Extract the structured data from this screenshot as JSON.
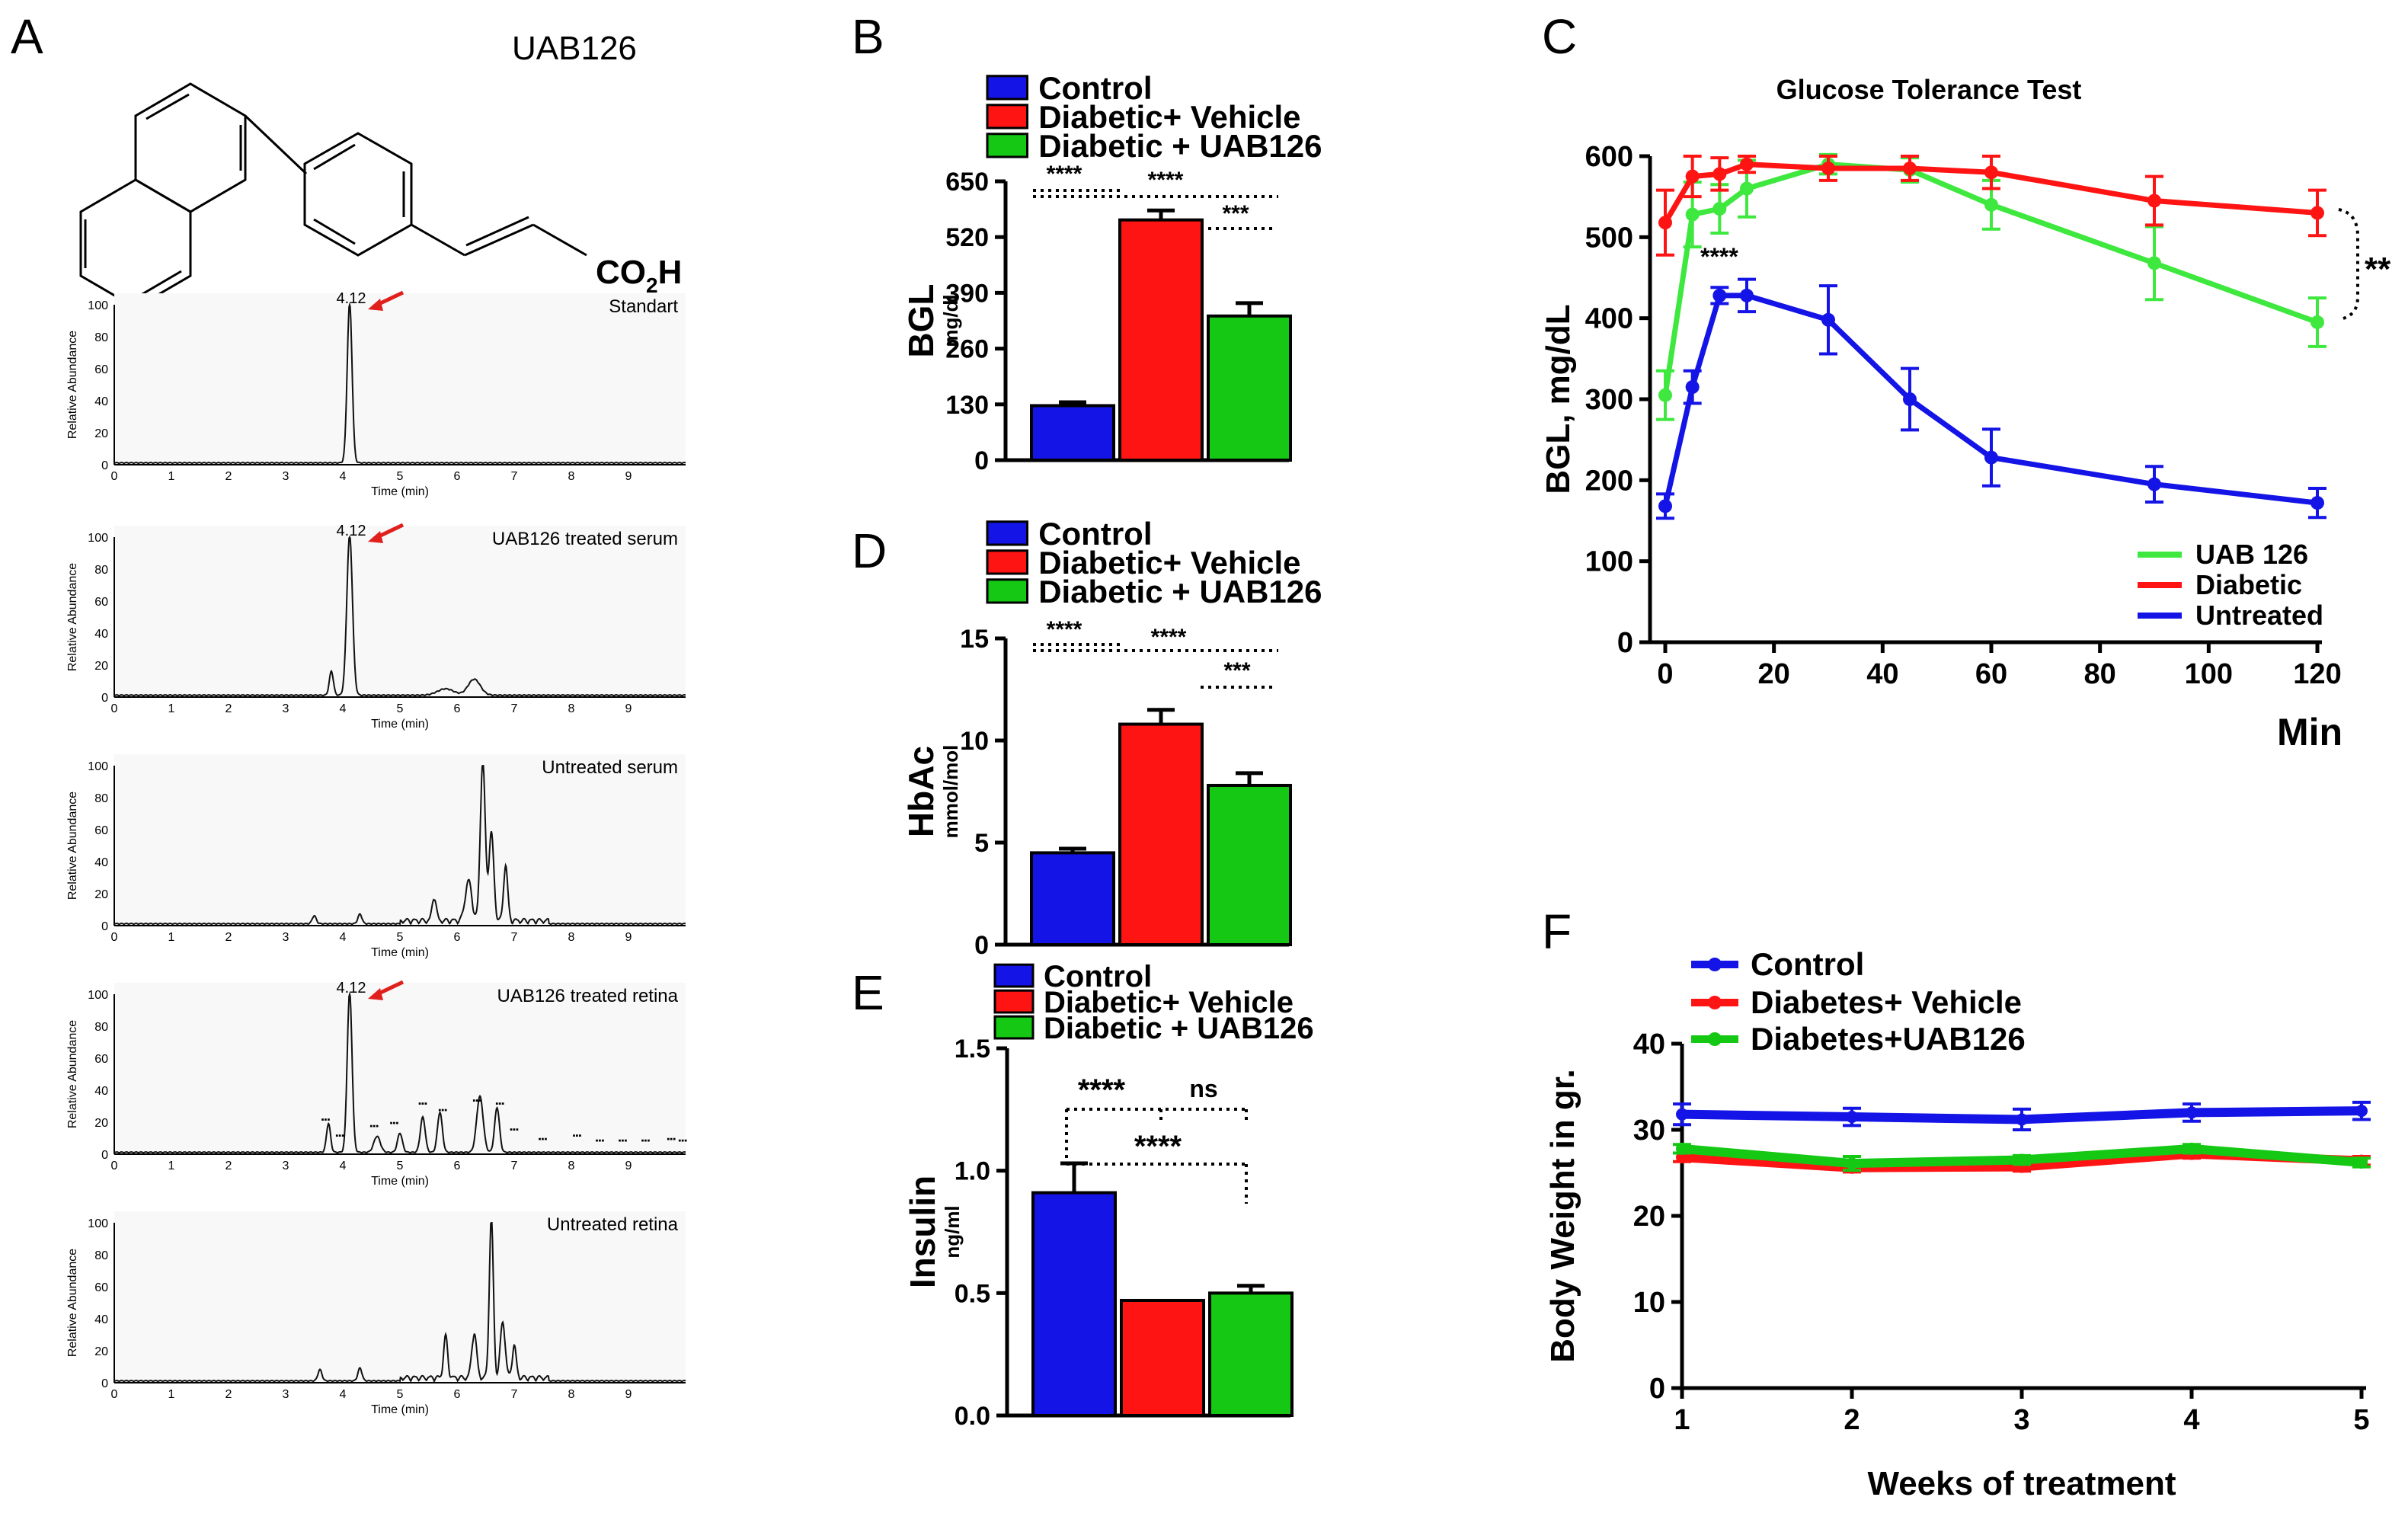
{
  "panel_labels": {
    "a": "A",
    "b": "B",
    "c": "C",
    "d": "D",
    "e": "E",
    "f": "F"
  },
  "panel_a": {
    "compound": "UAB126",
    "formula_main": "CO",
    "formula_sub": "2",
    "formula_tail": "H",
    "chromatograms": [
      {
        "label": "Standart",
        "peak_label": "4.12"
      },
      {
        "label": "UAB126 treated serum",
        "peak_label": "4.12"
      },
      {
        "label": "Untreated serum",
        "peak_label": ""
      },
      {
        "label": "UAB126 treated retina",
        "peak_label": "4.12"
      },
      {
        "label": "Untreated retina",
        "peak_label": ""
      }
    ],
    "y_label": "Relative Abundance",
    "x_label": "Time (min)",
    "x_ticks": [
      "0",
      "1",
      "2",
      "3",
      "4",
      "5",
      "6",
      "7",
      "8",
      "9"
    ],
    "y_ticks": [
      "0",
      "20",
      "40",
      "60",
      "80",
      "100"
    ],
    "colors": {
      "arrow": "#e0201c",
      "annotation": "#2f9e2f"
    }
  },
  "legend_bars": {
    "control": "Control",
    "vehicle": "Diabetic+ Vehicle",
    "uab": "Diabetic + UAB126"
  },
  "colors": {
    "blue": "#1414e6",
    "red": "#ff1414",
    "green": "#14c814",
    "lightgreen": "#3ee83e",
    "sig_blue": "#3a3ae8"
  },
  "chart_data": [
    {
      "id": "B",
      "type": "bar",
      "title": "",
      "ylabel": "BGL",
      "ylabel_unit": "mg/dl",
      "categories": [
        "Control",
        "Diabetic+ Vehicle",
        "Diabetic + UAB126"
      ],
      "values": [
        127,
        560,
        336
      ],
      "errors": [
        8,
        22,
        30
      ],
      "ylim": [
        0,
        650
      ],
      "yticks": [
        "0",
        "130",
        "260",
        "390",
        "520",
        "650"
      ],
      "sig": [
        "****",
        "****",
        "***"
      ]
    },
    {
      "id": "C",
      "type": "line",
      "title": "Glucose Tolerance Test",
      "xlabel": "Min",
      "ylabel": "BGL, mg/dL",
      "x": [
        0,
        5,
        10,
        15,
        30,
        45,
        60,
        90,
        120
      ],
      "xlim": [
        0,
        120
      ],
      "ylim": [
        0,
        600
      ],
      "xticks": [
        "0",
        "20",
        "40",
        "60",
        "80",
        "100",
        "120"
      ],
      "yticks": [
        "0",
        "100",
        "200",
        "300",
        "400",
        "500",
        "600"
      ],
      "series": [
        {
          "name": "UAB 126",
          "values": [
            305,
            528,
            535,
            560,
            590,
            583,
            540,
            468,
            395
          ],
          "errors": [
            30,
            40,
            30,
            35,
            12,
            15,
            30,
            45,
            30
          ]
        },
        {
          "name": "Diabetic",
          "values": [
            518,
            575,
            578,
            590,
            585,
            585,
            580,
            545,
            530
          ],
          "errors": [
            40,
            25,
            20,
            10,
            15,
            15,
            20,
            30,
            28
          ]
        },
        {
          "name": "Untreated",
          "values": [
            168,
            315,
            428,
            428,
            398,
            300,
            228,
            195,
            172
          ],
          "errors": [
            15,
            20,
            10,
            20,
            42,
            38,
            35,
            22,
            18
          ]
        }
      ],
      "sig_inline": "****",
      "sig_bracket": "**"
    },
    {
      "id": "D",
      "type": "bar",
      "title": "",
      "ylabel": "HbAc",
      "ylabel_unit": "mmol/mol",
      "categories": [
        "Control",
        "Diabetic+ Vehicle",
        "Diabetic + UAB126"
      ],
      "values": [
        4.5,
        10.8,
        7.8
      ],
      "errors": [
        0.2,
        0.7,
        0.6
      ],
      "ylim": [
        0,
        15
      ],
      "yticks": [
        "0",
        "5",
        "10",
        "15"
      ],
      "sig": [
        "****",
        "****",
        "***"
      ]
    },
    {
      "id": "E",
      "type": "bar",
      "title": "",
      "ylabel": "Insulin",
      "ylabel_unit": "ng/ml",
      "categories": [
        "Control",
        "Diabetic+ Vehicle",
        "Diabetic + UAB126"
      ],
      "values": [
        0.91,
        0.47,
        0.5
      ],
      "errors": [
        0.12,
        0.0,
        0.03
      ],
      "ylim": [
        0,
        1.5
      ],
      "yticks": [
        "0.0",
        "0.5",
        "1.0",
        "1.5"
      ],
      "sig": [
        "****",
        "ns",
        "****"
      ]
    },
    {
      "id": "F",
      "type": "line",
      "title": "",
      "xlabel": "Weeks of treatment",
      "ylabel": "Body Weight in gr.",
      "x": [
        1,
        2,
        3,
        4,
        5
      ],
      "xlim": [
        1,
        5
      ],
      "ylim": [
        0,
        40
      ],
      "xticks": [
        "1",
        "2",
        "3",
        "4",
        "5"
      ],
      "yticks": [
        "0",
        "10",
        "20",
        "30",
        "40"
      ],
      "series": [
        {
          "name": "Control",
          "values": [
            31.8,
            31.5,
            31.2,
            32.0,
            32.2
          ],
          "errors": [
            1.2,
            1.0,
            1.2,
            1.0,
            1.0
          ]
        },
        {
          "name": "Diabetes+ Vehicle",
          "values": [
            26.8,
            25.6,
            25.7,
            27.2,
            26.4
          ],
          "errors": [
            0.5,
            0.5,
            0.5,
            0.5,
            0.5
          ]
        },
        {
          "name": "Diabetes+UAB126",
          "values": [
            27.8,
            26.1,
            26.5,
            27.8,
            26.2
          ],
          "errors": [
            0.5,
            0.8,
            0.5,
            0.5,
            0.5
          ]
        }
      ]
    }
  ]
}
